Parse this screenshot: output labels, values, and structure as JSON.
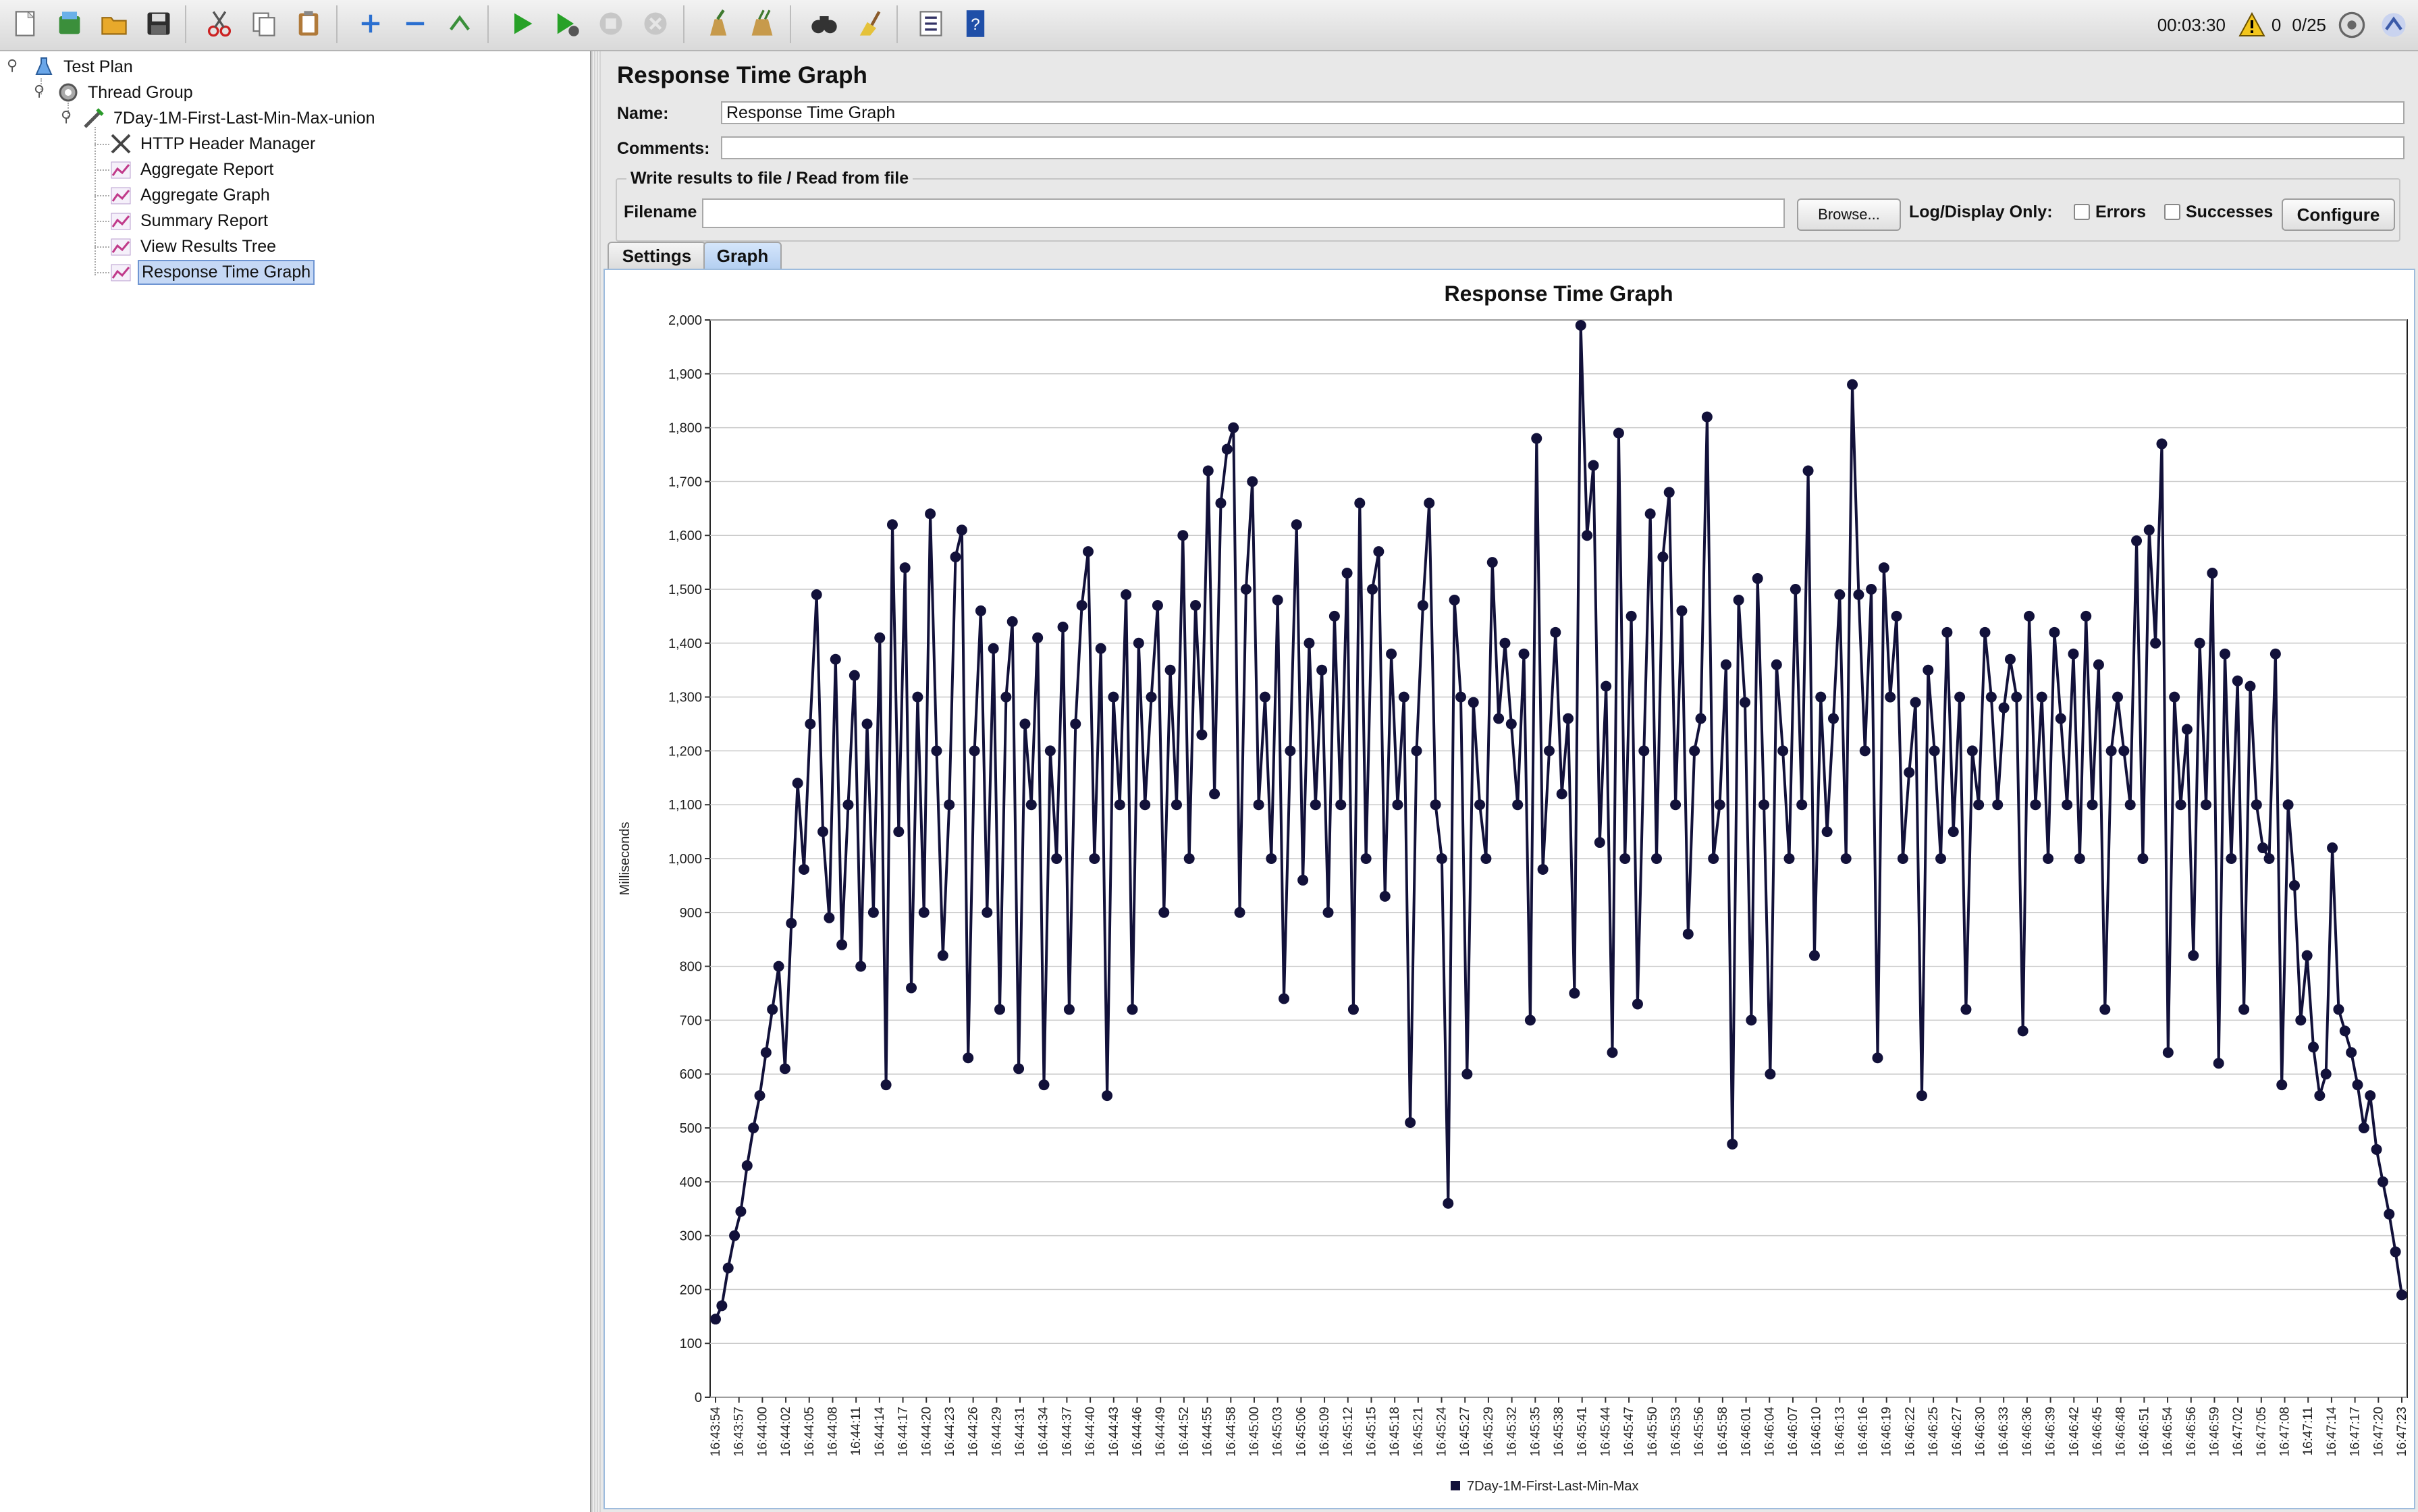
{
  "toolbar": {
    "buttons": [
      {
        "name": "new-icon"
      },
      {
        "name": "templates-icon"
      },
      {
        "name": "open-icon"
      },
      {
        "name": "save-icon"
      },
      {
        "name": "cut-icon"
      },
      {
        "name": "copy-icon"
      },
      {
        "name": "paste-icon"
      },
      {
        "name": "expand-icon"
      },
      {
        "name": "collapse-icon"
      },
      {
        "name": "toggle-icon"
      },
      {
        "name": "start-icon"
      },
      {
        "name": "start-no-pauses-icon"
      },
      {
        "name": "stop-icon"
      },
      {
        "name": "shutdown-icon"
      },
      {
        "name": "clear-icon"
      },
      {
        "name": "clear-all-icon"
      },
      {
        "name": "search-icon"
      },
      {
        "name": "reset-search-icon"
      },
      {
        "name": "function-helper-icon"
      },
      {
        "name": "help-icon"
      }
    ],
    "elapsed_time": "00:03:30",
    "warning_count": "0",
    "threads": "0/25"
  },
  "tree": {
    "items": [
      {
        "label": "Test Plan",
        "icon": "test-plan-icon"
      },
      {
        "label": "Thread Group",
        "icon": "thread-group-icon"
      },
      {
        "label": "7Day-1M-First-Last-Min-Max-union",
        "icon": "http-sampler-icon"
      },
      {
        "label": "HTTP Header Manager",
        "icon": "header-manager-icon"
      },
      {
        "label": "Aggregate Report",
        "icon": "listener-icon"
      },
      {
        "label": "Aggregate Graph",
        "icon": "listener-icon"
      },
      {
        "label": "Summary Report",
        "icon": "listener-icon"
      },
      {
        "label": "View Results Tree",
        "icon": "listener-icon"
      },
      {
        "label": "Response Time Graph",
        "icon": "listener-icon"
      }
    ]
  },
  "panel": {
    "title": "Response Time Graph",
    "name_label": "Name:",
    "name_value": "Response Time Graph",
    "comments_label": "Comments:",
    "comments_value": "",
    "file_group_legend": "Write results to file / Read from file",
    "filename_label": "Filename",
    "filename_value": "",
    "browse_label": "Browse...",
    "log_display_label": "Log/Display Only:",
    "errors_label": "Errors",
    "successes_label": "Successes",
    "configure_label": "Configure",
    "tabs": [
      {
        "label": "Settings"
      },
      {
        "label": "Graph"
      }
    ]
  },
  "chart_data": {
    "type": "line",
    "title": "Response Time Graph",
    "ylabel": "Milliseconds",
    "xlabel": "",
    "ylim": [
      0,
      2000
    ],
    "yticks": [
      "0",
      "100",
      "200",
      "300",
      "400",
      "500",
      "600",
      "700",
      "800",
      "900",
      "1,000",
      "1,100",
      "1,200",
      "1,300",
      "1,400",
      "1,500",
      "1,600",
      "1,700",
      "1,800",
      "1,900",
      "2,000"
    ],
    "x_tick_labels": [
      "16:43:54",
      "16:43:57",
      "16:44:00",
      "16:44:02",
      "16:44:05",
      "16:44:08",
      "16:44:11",
      "16:44:14",
      "16:44:17",
      "16:44:20",
      "16:44:23",
      "16:44:26",
      "16:44:29",
      "16:44:31",
      "16:44:34",
      "16:44:37",
      "16:44:40",
      "16:44:43",
      "16:44:46",
      "16:44:49",
      "16:44:52",
      "16:44:55",
      "16:44:58",
      "16:45:00",
      "16:45:03",
      "16:45:06",
      "16:45:09",
      "16:45:12",
      "16:45:15",
      "16:45:18",
      "16:45:21",
      "16:45:24",
      "16:45:27",
      "16:45:29",
      "16:45:32",
      "16:45:35",
      "16:45:38",
      "16:45:41",
      "16:45:44",
      "16:45:47",
      "16:45:50",
      "16:45:53",
      "16:45:56",
      "16:45:58",
      "16:46:01",
      "16:46:04",
      "16:46:07",
      "16:46:10",
      "16:46:13",
      "16:46:16",
      "16:46:19",
      "16:46:22",
      "16:46:25",
      "16:46:27",
      "16:46:30",
      "16:46:33",
      "16:46:36",
      "16:46:39",
      "16:46:42",
      "16:46:45",
      "16:46:48",
      "16:46:51",
      "16:46:54",
      "16:46:56",
      "16:46:59",
      "16:47:02",
      "16:47:05",
      "16:47:08",
      "16:47:11",
      "16:47:14",
      "16:47:17",
      "16:47:20",
      "16:47:23"
    ],
    "grid": true,
    "legend_position": "bottom",
    "series": [
      {
        "name": "7Day-1M-First-Last-Min-Max",
        "color": "#12113a",
        "values": [
          145,
          170,
          240,
          300,
          345,
          430,
          500,
          560,
          640,
          720,
          800,
          610,
          880,
          1140,
          980,
          1250,
          1490,
          1050,
          890,
          1370,
          840,
          1100,
          1340,
          800,
          1250,
          900,
          1410,
          580,
          1620,
          1050,
          1540,
          760,
          1300,
          900,
          1640,
          1200,
          820,
          1100,
          1560,
          1610,
          630,
          1200,
          1460,
          900,
          1390,
          720,
          1300,
          1440,
          610,
          1250,
          1100,
          1410,
          580,
          1200,
          1000,
          1430,
          720,
          1250,
          1470,
          1570,
          1000,
          1390,
          560,
          1300,
          1100,
          1490,
          720,
          1400,
          1100,
          1300,
          1470,
          900,
          1350,
          1100,
          1600,
          1000,
          1470,
          1230,
          1720,
          1120,
          1660,
          1760,
          1800,
          900,
          1500,
          1700,
          1100,
          1300,
          1000,
          1480,
          740,
          1200,
          1620,
          960,
          1400,
          1100,
          1350,
          900,
          1450,
          1100,
          1530,
          720,
          1660,
          1000,
          1500,
          1570,
          930,
          1380,
          1100,
          1300,
          510,
          1200,
          1470,
          1660,
          1100,
          1000,
          360,
          1480,
          1300,
          600,
          1290,
          1100,
          1000,
          1550,
          1260,
          1400,
          1250,
          1100,
          1380,
          700,
          1780,
          980,
          1200,
          1420,
          1120,
          1260,
          750,
          1990,
          1600,
          1730,
          1030,
          1320,
          640,
          1790,
          1000,
          1450,
          730,
          1200,
          1640,
          1000,
          1560,
          1680,
          1100,
          1460,
          860,
          1200,
          1260,
          1820,
          1000,
          1100,
          1360,
          470,
          1480,
          1290,
          700,
          1520,
          1100,
          600,
          1360,
          1200,
          1000,
          1500,
          1100,
          1720,
          820,
          1300,
          1050,
          1260,
          1490,
          1000,
          1880,
          1490,
          1200,
          1500,
          630,
          1540,
          1300,
          1450,
          1000,
          1160,
          1290,
          560,
          1350,
          1200,
          1000,
          1420,
          1050,
          1300,
          720,
          1200,
          1100,
          1420,
          1300,
          1100,
          1280,
          1370,
          1300,
          680,
          1450,
          1100,
          1300,
          1000,
          1420,
          1260,
          1100,
          1380,
          1000,
          1450,
          1100,
          1360,
          720,
          1200,
          1300,
          1200,
          1100,
          1590,
          1000,
          1610,
          1400,
          1770,
          640,
          1300,
          1100,
          1240,
          820,
          1400,
          1100,
          1530,
          620,
          1380,
          1000,
          1330,
          720,
          1320,
          1100,
          1020,
          1000,
          1380,
          580,
          1100,
          950,
          700,
          820,
          650,
          560,
          600,
          1020,
          720,
          680,
          640,
          580,
          500,
          560,
          460,
          400,
          340,
          270,
          190
        ]
      }
    ]
  }
}
